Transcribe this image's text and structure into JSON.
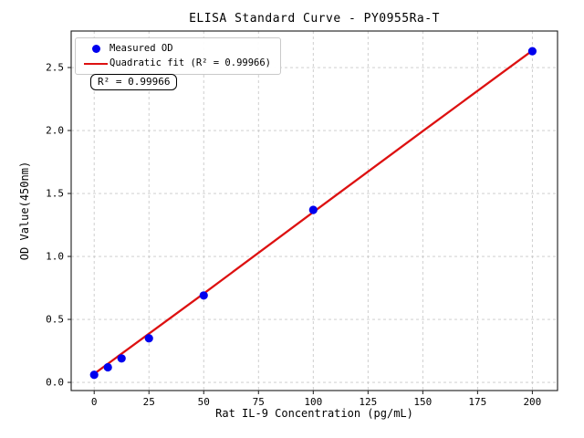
{
  "window": {
    "title": "ELISA Standard Curve - PY0955Ra-T"
  },
  "chart_data": {
    "type": "scatter",
    "title": "ELISA Standard Curve - PY0955Ra-T",
    "xlabel": "Rat IL-9 Concentration (pg/mL)",
    "ylabel": "OD Value(450nm)",
    "xlim": [
      -10.5,
      211.5
    ],
    "ylim": [
      -0.065,
      2.79
    ],
    "xticks": [
      0,
      25,
      50,
      75,
      100,
      125,
      150,
      175,
      200
    ],
    "xticklabels": [
      "0",
      "25",
      "50",
      "75",
      "100",
      "125",
      "150",
      "175",
      "200"
    ],
    "yticks": [
      0.0,
      0.5,
      1.0,
      1.5,
      2.0,
      2.5
    ],
    "yticklabels": [
      "0.0",
      "0.5",
      "1.0",
      "1.5",
      "2.0",
      "2.5"
    ],
    "grid": true,
    "grid_style": "dashed",
    "legend_position": "upper left",
    "series": [
      {
        "name": "Measured OD",
        "type": "scatter",
        "color": "#0000ee",
        "x": [
          0,
          6.25,
          12.5,
          25,
          50,
          100,
          200
        ],
        "y": [
          0.06,
          0.12,
          0.19,
          0.35,
          0.69,
          1.37,
          2.63
        ]
      },
      {
        "name": "Quadratic fit (R² = 0.99966)",
        "type": "line",
        "color": "#dd1111",
        "x": [
          0,
          50,
          100,
          150,
          200
        ],
        "y": [
          0.068,
          0.705,
          1.352,
          1.995,
          2.635
        ]
      }
    ],
    "annotation": "R² = 0.99966",
    "colors": {
      "grid": "#c9c9c9",
      "axis": "#1a1a1a",
      "background": "#ffffff"
    }
  }
}
